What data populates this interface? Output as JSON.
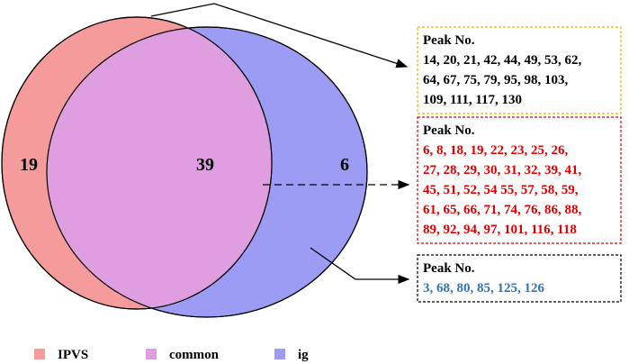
{
  "venn": {
    "regions": [
      {
        "name": "IPVS",
        "count": 19,
        "color": "#f59b9b"
      },
      {
        "name": "common",
        "count": 39,
        "color": "#de9ee0"
      },
      {
        "name": "ig",
        "count": 6,
        "color": "#9c9cf4"
      }
    ],
    "boxes": [
      {
        "title": "Peak No.",
        "text_color": "#000000",
        "border": "#e8b400",
        "lines": [
          "14, 20, 21, 42, 44, 49, 53, 62,",
          "64, 67, 75, 79, 95, 98, 103,",
          "109, 111, 117, 130"
        ]
      },
      {
        "title": "Peak No.",
        "text_color": "#e00000",
        "border": "#e00000",
        "lines": [
          "6, 8, 18, 19, 22, 23, 25, 26,",
          "27, 28, 29, 30, 31, 32, 39, 41,",
          "45, 51, 52, 54 55, 57, 58, 59,",
          "61, 65, 66, 71, 74, 76, 86, 88,",
          "89, 92, 94, 97, 101, 116, 118"
        ]
      },
      {
        "title": "Peak No.",
        "text_color": "#2e75b6",
        "border": "#000000",
        "lines": [
          "3, 68, 80, 85, 125, 126"
        ]
      }
    ]
  }
}
